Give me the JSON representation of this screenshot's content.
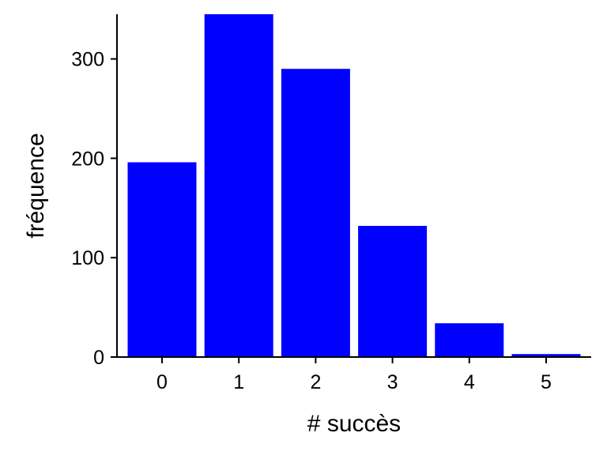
{
  "chart_data": {
    "type": "bar",
    "title": "",
    "xlabel": "# succès",
    "ylabel": "fréquence",
    "categories": [
      "0",
      "1",
      "2",
      "3",
      "4",
      "5"
    ],
    "values": [
      196,
      345,
      290,
      132,
      34,
      3
    ],
    "ylim": [
      0,
      345
    ],
    "yticks": [
      0,
      100,
      200,
      300
    ],
    "bar_color": "#0000FF",
    "grid": false,
    "legend": "none"
  }
}
